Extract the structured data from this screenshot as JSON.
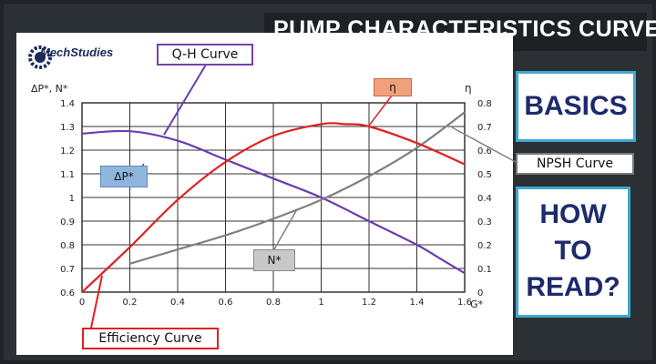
{
  "header": {
    "title": "PUMP CHARACTERISTICS CURVE",
    "logo_text": "MechStudies"
  },
  "side": {
    "basics": "BASICS",
    "howto": [
      "HOW",
      "TO",
      "READ?"
    ]
  },
  "callouts": {
    "qh_curve": "Q-H Curve",
    "efficiency_curve": "Efficiency Curve",
    "npsh_curve": "NPSH Curve"
  },
  "tags": {
    "dp": "ΔP*",
    "n": "N*",
    "eta": "η"
  },
  "colors": {
    "qh": "#6a3cb0",
    "efficiency": "#e02020",
    "npsh": "#808080",
    "accent": "#3fa8d0"
  },
  "chart_data": {
    "type": "line",
    "title": "",
    "xlabel": "G*",
    "ylabel_left": "ΔP*, N*",
    "ylabel_right": "η",
    "xlim": [
      0,
      1.6
    ],
    "ylim_left": [
      0.6,
      1.4
    ],
    "ylim_right": [
      0,
      0.8
    ],
    "x_ticks": [
      "0",
      "0.2",
      "0.4",
      "0.6",
      "0.8",
      "1",
      "1.2",
      "1.4",
      "1.6"
    ],
    "y_left_ticks": [
      "0.6",
      "0.7",
      "0.8",
      "0.9",
      "1",
      "1.1",
      "1.2",
      "1.3",
      "1.4"
    ],
    "y_right_ticks": [
      "0",
      "0.1",
      "0.2",
      "0.3",
      "0.4",
      "0.5",
      "0.6",
      "0.7",
      "0.8"
    ],
    "grid": true,
    "series": [
      {
        "name": "ΔP*",
        "axis": "left",
        "color": "#6a3cb0",
        "x": [
          0,
          0.2,
          0.4,
          0.6,
          0.8,
          1.0,
          1.2,
          1.4,
          1.5,
          1.6
        ],
        "y": [
          1.27,
          1.28,
          1.24,
          1.16,
          1.08,
          1.0,
          0.9,
          0.8,
          0.74,
          0.68
        ]
      },
      {
        "name": "N*",
        "axis": "left",
        "color": "#808080",
        "x": [
          0.2,
          0.4,
          0.6,
          0.8,
          1.0,
          1.2,
          1.4,
          1.6
        ],
        "y": [
          0.72,
          0.78,
          0.84,
          0.91,
          0.99,
          1.09,
          1.21,
          1.36
        ]
      },
      {
        "name": "η",
        "axis": "right",
        "color": "#e02020",
        "x": [
          0,
          0.2,
          0.4,
          0.6,
          0.8,
          1.0,
          1.1,
          1.2,
          1.4,
          1.6
        ],
        "y": [
          0.0,
          0.19,
          0.39,
          0.55,
          0.66,
          0.71,
          0.71,
          0.7,
          0.63,
          0.54
        ]
      }
    ]
  }
}
